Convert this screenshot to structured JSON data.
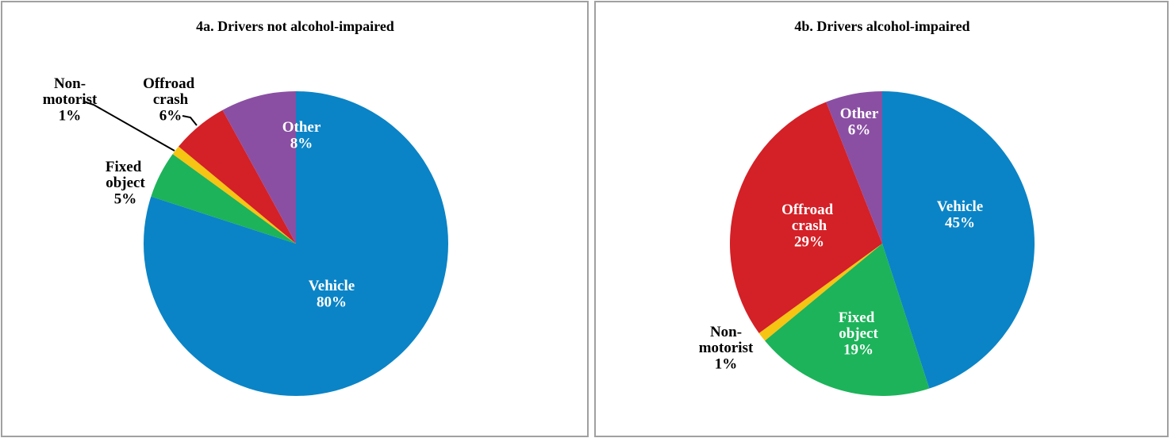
{
  "chart_data": [
    {
      "type": "pie",
      "title": "4a. Drivers not alcohol-impaired",
      "categories": [
        "Vehicle",
        "Fixed object",
        "Non-motorist",
        "Offroad crash",
        "Other"
      ],
      "values": [
        80,
        5,
        1,
        6,
        8
      ],
      "value_labels": [
        "80%",
        "5%",
        "1%",
        "6%",
        "8%"
      ],
      "colors": [
        "#0a84c6",
        "#1db35a",
        "#f6c412",
        "#d42027",
        "#8a4fa3"
      ]
    },
    {
      "type": "pie",
      "title": "4b. Drivers alcohol-impaired",
      "categories": [
        "Vehicle",
        "Fixed object",
        "Non-motorist",
        "Offroad crash",
        "Other"
      ],
      "values": [
        45,
        19,
        1,
        29,
        6
      ],
      "value_labels": [
        "45%",
        "19%",
        "1%",
        "29%",
        "6%"
      ],
      "colors": [
        "#0a84c6",
        "#1db35a",
        "#f6c412",
        "#d42027",
        "#8a4fa3"
      ]
    }
  ]
}
